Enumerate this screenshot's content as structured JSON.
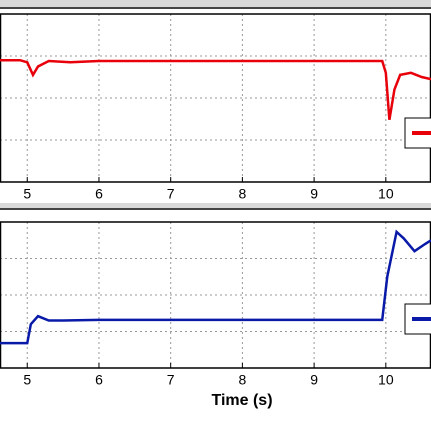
{
  "chart_data": [
    {
      "type": "line",
      "xlim": [
        4.62,
        10.63
      ],
      "xticks": [
        5,
        6,
        7,
        8,
        9,
        10
      ],
      "ylim": [
        0,
        4
      ],
      "ygrid": [
        1,
        2,
        3
      ],
      "grid": true,
      "legend": "lower right",
      "series": [
        {
          "color": "#e8000b",
          "x": [
            4.62,
            4.9,
            5.0,
            5.08,
            5.15,
            5.3,
            5.6,
            6,
            7,
            8,
            9,
            9.95,
            10.0,
            10.05,
            10.12,
            10.2,
            10.35,
            10.5,
            10.63
          ],
          "values": [
            2.9,
            2.9,
            2.85,
            2.55,
            2.75,
            2.88,
            2.85,
            2.88,
            2.88,
            2.88,
            2.88,
            2.88,
            2.6,
            1.48,
            2.2,
            2.55,
            2.6,
            2.5,
            2.45
          ]
        }
      ]
    },
    {
      "type": "line",
      "xlabel": "Time (s)",
      "xlim": [
        4.62,
        10.63
      ],
      "xticks": [
        5,
        6,
        7,
        8,
        9,
        10
      ],
      "ylim": [
        0,
        4
      ],
      "ygrid": [
        1,
        2,
        3
      ],
      "grid": true,
      "legend": "lower right",
      "series": [
        {
          "color": "#0a1aa8",
          "x": [
            4.62,
            5.0,
            5.05,
            5.15,
            5.3,
            5.5,
            6,
            7,
            8,
            9,
            9.95,
            10.02,
            10.15,
            10.25,
            10.4,
            10.55,
            10.63
          ],
          "values": [
            0.68,
            0.68,
            1.2,
            1.42,
            1.3,
            1.3,
            1.32,
            1.32,
            1.32,
            1.32,
            1.32,
            2.5,
            3.73,
            3.55,
            3.2,
            3.4,
            3.5
          ]
        }
      ]
    }
  ]
}
